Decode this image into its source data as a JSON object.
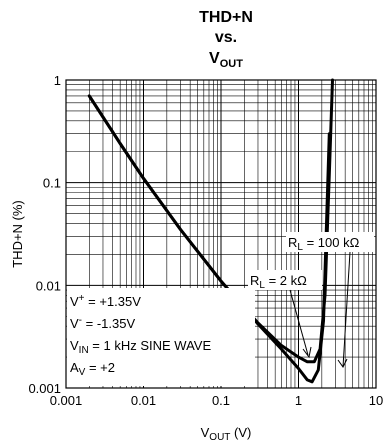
{
  "chart_data": {
    "type": "line",
    "title_line1": "THD+N",
    "title_line2": "vs.",
    "title_line3_main": "V",
    "title_line3_sub": "OUT",
    "xlabel_main": "V",
    "xlabel_sub": "OUT",
    "xlabel_unit": " (V)",
    "ylabel": "THD+N (%)",
    "xscale": "log",
    "yscale": "log",
    "xlim": [
      0.001,
      10
    ],
    "ylim": [
      0.001,
      1
    ],
    "grid": true,
    "x_ticks": [
      "0.001",
      "0.01",
      "0.1",
      "1",
      "10"
    ],
    "y_ticks": [
      "0.001",
      "0.01",
      "0.1",
      "1"
    ],
    "series": [
      {
        "name": "RL = 2 kΩ",
        "x": [
          0.002,
          0.005,
          0.01,
          0.03,
          0.1,
          0.3,
          0.6,
          1.0,
          1.3,
          1.5,
          1.8,
          2.1,
          2.5
        ],
        "y": [
          0.7,
          0.24,
          0.11,
          0.035,
          0.011,
          0.0042,
          0.0024,
          0.00155,
          0.0012,
          0.00115,
          0.0015,
          0.0045,
          0.3
        ]
      },
      {
        "name": "RL = 100 kΩ",
        "x": [
          0.002,
          0.005,
          0.01,
          0.03,
          0.1,
          0.3,
          0.6,
          1.0,
          1.3,
          1.6,
          1.9,
          2.2,
          2.5,
          2.75
        ],
        "y": [
          0.7,
          0.24,
          0.11,
          0.035,
          0.011,
          0.0043,
          0.0026,
          0.002,
          0.0018,
          0.0018,
          0.0024,
          0.008,
          0.12,
          1.0
        ]
      }
    ],
    "annotations": {
      "rl100_main": "R",
      "rl100_sub": "L",
      "rl100_rest": " = 100 kΩ",
      "rl2_main": "R",
      "rl2_sub": "L",
      "rl2_rest": " = 2 kΩ",
      "conditions": [
        {
          "main": "V",
          "sup": "+",
          "sub": "",
          "rest": " = +1.35V"
        },
        {
          "main": "V",
          "sup": "-",
          "sub": "",
          "rest": " = -1.35V"
        },
        {
          "main": "V",
          "sup": "",
          "sub": "IN",
          "rest": " = 1 kHz SINE WAVE"
        },
        {
          "main": "A",
          "sup": "",
          "sub": "V",
          "rest": " = +2"
        }
      ]
    }
  }
}
